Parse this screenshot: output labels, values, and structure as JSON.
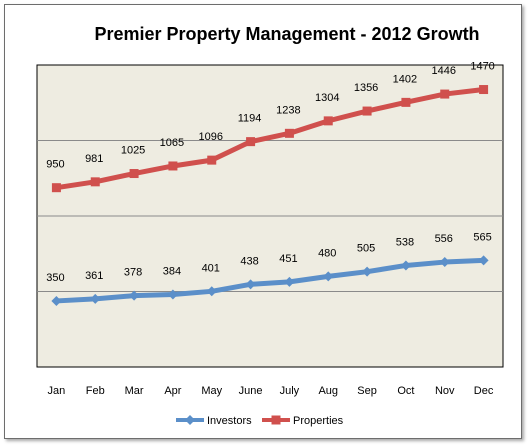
{
  "chart_data": {
    "type": "line",
    "title": "Premier Property Management - 2012 Growth",
    "categories": [
      "Jan",
      "Feb",
      "Mar",
      "Apr",
      "May",
      "June",
      "July",
      "Aug",
      "Sep",
      "Oct",
      "Nov",
      "Dec"
    ],
    "series": [
      {
        "name": "Investors",
        "values": [
          350,
          361,
          378,
          384,
          401,
          438,
          451,
          480,
          505,
          538,
          556,
          565
        ],
        "color": "#5b8fc9",
        "marker": "diamond"
      },
      {
        "name": "Properties",
        "values": [
          950,
          981,
          1025,
          1065,
          1096,
          1194,
          1238,
          1304,
          1356,
          1402,
          1446,
          1470
        ],
        "color": "#d0504d",
        "marker": "square"
      }
    ],
    "ylim": [
      0,
      1600
    ],
    "grid": true,
    "legend": "bottom",
    "plot_background": "#eeece1"
  }
}
